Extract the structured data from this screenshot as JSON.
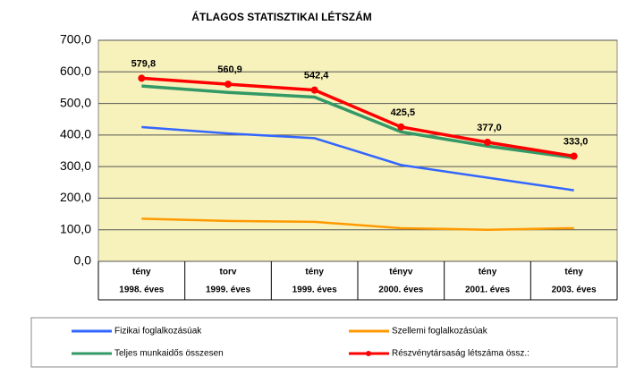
{
  "chart_data": {
    "type": "line",
    "title": "ÁTLAGOS STATISZTIKAI LÉTSZÁM",
    "categories": [
      [
        "tény",
        "1998. éves"
      ],
      [
        "torv",
        "1999. éves"
      ],
      [
        "tény",
        "1999. éves"
      ],
      [
        "tényv",
        "2000. éves"
      ],
      [
        "tény",
        "2001. éves"
      ],
      [
        "tény",
        "2003. éves"
      ]
    ],
    "series": [
      {
        "name": "Fizikai foglalkozásúak",
        "color": "#3366ff",
        "width": 2.5,
        "values": [
          425,
          405,
          390,
          305,
          265,
          225
        ]
      },
      {
        "name": "Szellemi foglalkozásúak",
        "color": "#ff9900",
        "width": 2.5,
        "values": [
          135,
          128,
          125,
          105,
          100,
          105
        ]
      },
      {
        "name": "Teljes munkaidős összesen",
        "color": "#339966",
        "width": 3.5,
        "values": [
          555,
          535,
          520,
          410,
          365,
          328
        ]
      },
      {
        "name": "Részvénytársaság létszáma össz.:",
        "color": "#ff0000",
        "width": 3.5,
        "markers": true,
        "values": [
          579.8,
          560.9,
          542.4,
          425.5,
          377.0,
          333.0
        ],
        "value_labels": [
          "579,8",
          "560,9",
          "542,4",
          "425,5",
          "377,0",
          "333,0"
        ]
      }
    ],
    "ylim": [
      0,
      700
    ],
    "yticks": [
      {
        "value": 0,
        "label": "0,0"
      },
      {
        "value": 100,
        "label": "100,0"
      },
      {
        "value": 200,
        "label": "200,0"
      },
      {
        "value": 300,
        "label": "300,0"
      },
      {
        "value": 400,
        "label": "400,0"
      },
      {
        "value": 500,
        "label": "500,0"
      },
      {
        "value": 600,
        "label": "600,0"
      },
      {
        "value": 700,
        "label": "700,0"
      }
    ],
    "grid": true
  }
}
